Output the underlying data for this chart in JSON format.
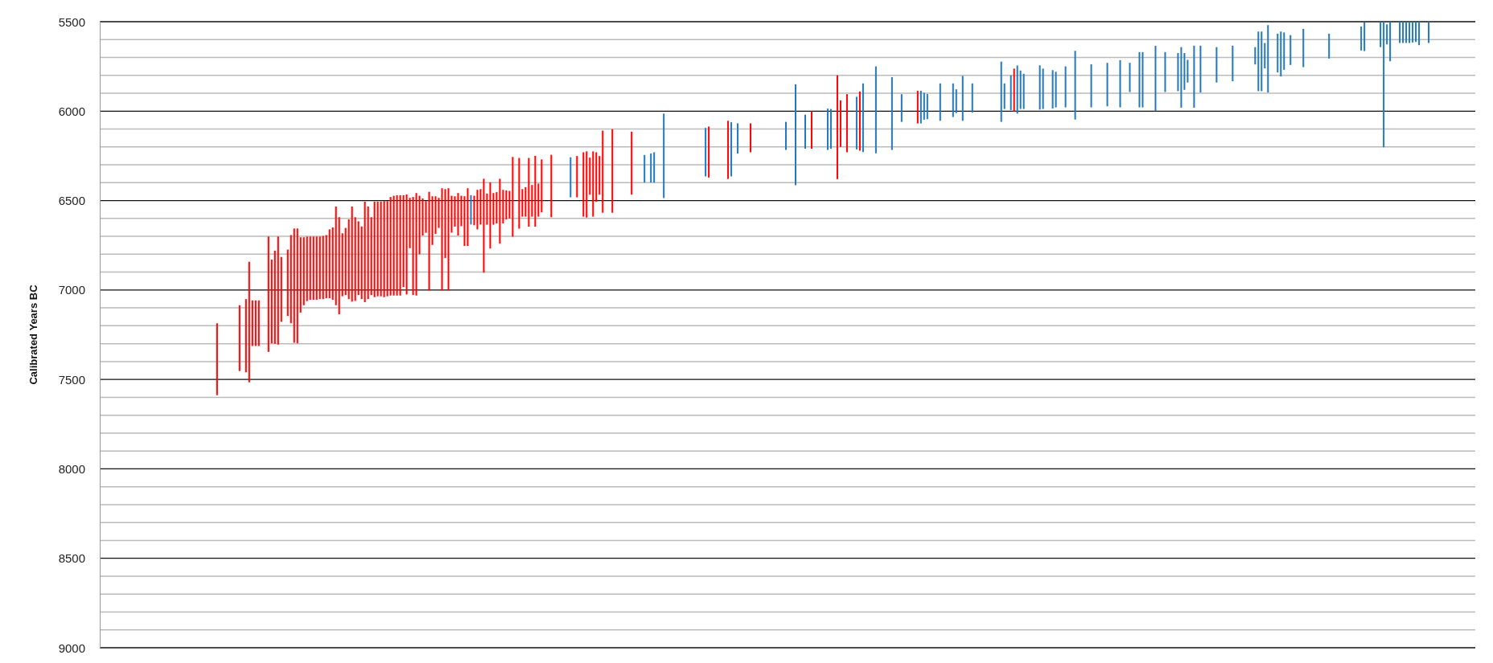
{
  "chart_data": {
    "type": "bar",
    "ylabel": "Calibrated Years BC",
    "tick_labels": "y",
    "grid": true,
    "ylim": [
      9000,
      5500
    ],
    "yticks": [
      5500,
      {
        "value": 5600,
        "label": null
      },
      {
        "value": 5700,
        "label": null
      },
      {
        "value": 5800,
        "label": null
      },
      {
        "value": 5900,
        "label": null
      },
      6000,
      {
        "value": 6100,
        "label": null
      },
      {
        "value": 6200,
        "label": null
      },
      {
        "value": 6300,
        "label": null
      },
      {
        "value": 6400,
        "label": null
      },
      6500,
      {
        "value": 6600,
        "label": null
      },
      {
        "value": 6700,
        "label": null
      },
      {
        "value": 6800,
        "label": null
      },
      {
        "value": 6900,
        "label": null
      },
      7000,
      {
        "value": 7100,
        "label": null
      },
      {
        "value": 7200,
        "label": null
      },
      {
        "value": 7300,
        "label": null
      },
      {
        "value": 7400,
        "label": null
      },
      7500,
      {
        "value": 7600,
        "label": null
      },
      {
        "value": 7700,
        "label": null
      },
      {
        "value": 7800,
        "label": null
      },
      {
        "value": 7900,
        "label": null
      },
      8000,
      {
        "value": 8100,
        "label": null
      },
      {
        "value": 8200,
        "label": null
      },
      {
        "value": 8300,
        "label": null
      },
      {
        "value": 8400,
        "label": null
      },
      8500,
      {
        "value": 8600,
        "label": null
      },
      {
        "value": 8700,
        "label": null
      },
      {
        "value": 8800,
        "label": null
      },
      {
        "value": 8900,
        "label": null
      },
      9000
    ],
    "categories": [
      null,
      null,
      null,
      null,
      null,
      null,
      null,
      null,
      null,
      null,
      null,
      null,
      null,
      null,
      null,
      null,
      null,
      null,
      null,
      null,
      null,
      null,
      null,
      null,
      null,
      null,
      null,
      null,
      null,
      null,
      null,
      null,
      null,
      null,
      null,
      null,
      null,
      null,
      null,
      null,
      null,
      null,
      null,
      null,
      null,
      null,
      null,
      null,
      null,
      null,
      null,
      null,
      null,
      null,
      null,
      null,
      null,
      null,
      null,
      null,
      null,
      null,
      null,
      null,
      null,
      null,
      null,
      null,
      null,
      null,
      null,
      null,
      null,
      null,
      null,
      null,
      null,
      null,
      null,
      null,
      null,
      null,
      null,
      null,
      null,
      null,
      null,
      null,
      null,
      null,
      null,
      null,
      null,
      null,
      null,
      null,
      null,
      null,
      null,
      null,
      null,
      null,
      null,
      null,
      null,
      null,
      null,
      null,
      null,
      null,
      null,
      null,
      null,
      null,
      null,
      null,
      null,
      null,
      null,
      null,
      null,
      null,
      null,
      null,
      null,
      null,
      null,
      null,
      null,
      null,
      null,
      null,
      null,
      null,
      null,
      null,
      null,
      null,
      null,
      null,
      null,
      null,
      null,
      null,
      null,
      null,
      null,
      null,
      null,
      null,
      null,
      null,
      null,
      null,
      null,
      null,
      null,
      null,
      null,
      null,
      null,
      null,
      null,
      null,
      null,
      null,
      null,
      null,
      null,
      null,
      null,
      null,
      null,
      null,
      null,
      null,
      null,
      null,
      null,
      null,
      null,
      null,
      null,
      null,
      null,
      null,
      null,
      null,
      null,
      null,
      null,
      null,
      null,
      null,
      null,
      null,
      null,
      null,
      null,
      null,
      null,
      null,
      null,
      null,
      null,
      null,
      null,
      null,
      null,
      null,
      null,
      null,
      null,
      null,
      null,
      null,
      null,
      null,
      null,
      null,
      null,
      null,
      null,
      null,
      null,
      null,
      null,
      null,
      null,
      null,
      null,
      null,
      null,
      null,
      null,
      null,
      null,
      null,
      null,
      null,
      null,
      null,
      null,
      null,
      null,
      null,
      null,
      null,
      null,
      null,
      null,
      null,
      null,
      null,
      null,
      null,
      null,
      null,
      null,
      null,
      null,
      null,
      null,
      null,
      null,
      null,
      null,
      null,
      null,
      null,
      null,
      null,
      null,
      null,
      null,
      null,
      null,
      null,
      null,
      null,
      null,
      null,
      null,
      null,
      null,
      null,
      null,
      null,
      null,
      null,
      null,
      null,
      null,
      null,
      null,
      null,
      null,
      null,
      null,
      null,
      null,
      null,
      null,
      null,
      null,
      null,
      null,
      null,
      null,
      null,
      null,
      null,
      null,
      null,
      null,
      null,
      null,
      null,
      null,
      null,
      null,
      null,
      null,
      null,
      null,
      null,
      null,
      null,
      null,
      null,
      null,
      null,
      null,
      null,
      null,
      null,
      null,
      null,
      null,
      null,
      null,
      null,
      null,
      null,
      null,
      null,
      null,
      null,
      null,
      null,
      null,
      null,
      null,
      null,
      null,
      null,
      null,
      null,
      null,
      null,
      null,
      null,
      null,
      null,
      null,
      null,
      null,
      null,
      null,
      null,
      null,
      null,
      null,
      null,
      null,
      null,
      null,
      null,
      null,
      null,
      null,
      null,
      null,
      null,
      null,
      null,
      null,
      null,
      null,
      null,
      null,
      null,
      null,
      null,
      null,
      null,
      null,
      null,
      null,
      null,
      null,
      null,
      null,
      null,
      null,
      null,
      null,
      null,
      null,
      null,
      null,
      null,
      null,
      null,
      null,
      null,
      null,
      null,
      null,
      null,
      null,
      null,
      null,
      null,
      null,
      null,
      null,
      null
    ],
    "series": [
      {
        "base": [
          null,
          null,
          null,
          null,
          null,
          null,
          null,
          null,
          null,
          null,
          null,
          null,
          null,
          null,
          null,
          null,
          null,
          null,
          null,
          null,
          null,
          null,
          null,
          null,
          null,
          null,
          null,
          null,
          null,
          null,
          null,
          null,
          null,
          null,
          null,
          null,
          7186,
          null,
          null,
          null,
          null,
          null,
          null,
          7085,
          null,
          7051,
          6842,
          7058,
          7058,
          7058,
          null,
          null,
          6701,
          6830,
          6780,
          6701,
          6815,
          null,
          6774,
          6693,
          6656,
          6656,
          6705,
          6705,
          6701,
          6701,
          6701,
          6701,
          6701,
          6698,
          6693,
          6661,
          6650,
          6533,
          6593,
          6683,
          6653,
          6605,
          6533,
          6593,
          6616,
          6645,
          6506,
          6533,
          6593,
          6506,
          6506,
          6506,
          6503,
          6503,
          6480,
          6473,
          6470,
          6470,
          6470,
          6466,
          6485,
          6480,
          6458,
          6473,
          6488,
          6503,
          6451,
          6476,
          6476,
          6485,
          6431,
          6436,
          6431,
          6473,
          6476,
          6458,
          6473,
          6476,
          6431,
          6470,
          6473,
          6440,
          6436,
          6378,
          6461,
          6398,
          6458,
          6453,
          6378,
          6440,
          6443,
          6446,
          6256,
          null,
          6262,
          6436,
          6425,
          6262,
          6413,
          6250,
          6405,
          6270,
          null,
          null,
          6244,
          null,
          null,
          null,
          null,
          null,
          6258,
          null,
          6251,
          null,
          6230,
          6225,
          6260,
          6225,
          6230,
          6251,
          6109,
          null,
          null,
          6101,
          null,
          null,
          null,
          null,
          null,
          6115,
          null,
          null,
          null,
          6245,
          null,
          6237,
          6230,
          null,
          null,
          6014,
          null,
          null,
          null,
          null,
          null,
          null,
          null,
          null,
          null,
          null,
          null,
          null,
          6094,
          6086,
          null,
          null,
          null,
          null,
          null,
          6054,
          6062,
          null,
          6068,
          null,
          null,
          null,
          6068,
          null,
          null,
          null,
          null,
          null,
          null,
          null,
          null,
          null,
          null,
          6060,
          null,
          null,
          5850,
          null,
          null,
          6020,
          null,
          6000,
          null,
          null,
          null,
          null,
          5986,
          5988,
          null,
          5800,
          5940,
          null,
          5905,
          null,
          null,
          5920,
          5890,
          5845,
          null,
          null,
          null,
          5750,
          null,
          null,
          null,
          null,
          5810,
          null,
          null,
          5905,
          null,
          null,
          null,
          null,
          5886,
          5886,
          5898,
          5904,
          null,
          null,
          null,
          5845,
          null,
          null,
          null,
          5845,
          5878,
          null,
          5803,
          null,
          null,
          5845,
          null,
          null,
          null,
          null,
          null,
          null,
          null,
          null,
          5723,
          5845,
          null,
          5800,
          5762,
          5745,
          5773,
          5791,
          null,
          null,
          null,
          null,
          5744,
          5762,
          null,
          null,
          5771,
          5780,
          null,
          null,
          5750,
          null,
          null,
          5663,
          null,
          null,
          null,
          null,
          5738,
          null,
          null,
          null,
          null,
          5730,
          null,
          null,
          null,
          5715,
          null,
          null,
          5730,
          null,
          null,
          5670,
          5670,
          null,
          null,
          null,
          5635,
          null,
          null,
          5670,
          null,
          null,
          null,
          5675,
          5642,
          5675,
          5713,
          null,
          5634,
          null,
          5634,
          null,
          null,
          null,
          null,
          5642,
          null,
          null,
          null,
          null,
          5634,
          null,
          null,
          null,
          null,
          null,
          null,
          5642,
          5555,
          5555,
          5619,
          5519,
          null,
          null,
          5567,
          5555,
          5560,
          null,
          5575,
          null,
          null,
          null,
          5540,
          null,
          null,
          null,
          null,
          null,
          null,
          null,
          5567,
          null,
          null,
          null,
          null,
          null,
          null,
          null,
          null,
          null,
          5527,
          5503,
          null,
          null,
          null,
          null,
          5500,
          5500,
          5515,
          5500,
          null,
          null,
          5500,
          5500,
          5500,
          5500,
          5500,
          5500,
          5500,
          null,
          null,
          5500,
          null,
          null,
          null,
          null,
          null,
          null,
          null,
          null,
          null,
          null,
          null,
          null,
          null,
          null
        ],
        "values": [
          null,
          null,
          null,
          null,
          null,
          null,
          null,
          null,
          null,
          null,
          null,
          null,
          null,
          null,
          null,
          null,
          null,
          null,
          null,
          null,
          null,
          null,
          null,
          null,
          null,
          null,
          null,
          null,
          null,
          null,
          null,
          null,
          null,
          null,
          null,
          null,
          402,
          null,
          null,
          null,
          null,
          null,
          null,
          368,
          null,
          409,
          674,
          255,
          255,
          255,
          null,
          null,
          645,
          468,
          521,
          604,
          363,
          null,
          371,
          493,
          639,
          642,
          421,
          380,
          361,
          354,
          354,
          354,
          350,
          353,
          353,
          385,
          405,
          552,
          543,
          352,
          375,
          446,
          532,
          468,
          412,
          406,
          562,
          518,
          435,
          534,
          529,
          529,
          537,
          532,
          551,
          558,
          561,
          561,
          513,
          559,
          281,
          548,
          573,
          327,
          207,
          177,
          552,
          272,
          210,
          168,
          572,
          385,
          572,
          206,
          170,
          237,
          170,
          278,
          323,
          164,
          165,
          221,
          198,
          525,
          174,
          370,
          177,
          175,
          362,
          188,
          162,
          154,
          446,
          null,
          395,
          154,
          165,
          384,
          177,
          396,
          185,
          296,
          null,
          null,
          349,
          null,
          null,
          null,
          null,
          null,
          224,
          null,
          231,
          null,
          360,
          370,
          207,
          365,
          277,
          216,
          459,
          null,
          null,
          467,
          null,
          null,
          null,
          null,
          null,
          352,
          null,
          null,
          null,
          154,
          null,
          162,
          169,
          null,
          null,
          472,
          null,
          null,
          null,
          null,
          null,
          null,
          null,
          null,
          null,
          null,
          null,
          null,
          271,
          285,
          null,
          null,
          null,
          null,
          null,
          325,
          303,
          null,
          169,
          null,
          null,
          null,
          162,
          null,
          null,
          null,
          null,
          null,
          null,
          null,
          null,
          null,
          null,
          157,
          null,
          null,
          564,
          null,
          null,
          190,
          null,
          210,
          null,
          null,
          null,
          null,
          231,
          222,
          null,
          580,
          260,
          null,
          325,
          null,
          null,
          294,
          331,
          384,
          null,
          null,
          null,
          486,
          null,
          null,
          null,
          null,
          407,
          null,
          null,
          155,
          null,
          null,
          null,
          null,
          183,
          183,
          150,
          141,
          null,
          null,
          null,
          209,
          null,
          null,
          null,
          188,
          133,
          null,
          251,
          null,
          null,
          163,
          null,
          null,
          null,
          null,
          null,
          null,
          null,
          null,
          337,
          143,
          null,
          194,
          241,
          269,
          215,
          197,
          null,
          null,
          null,
          null,
          247,
          226,
          null,
          null,
          214,
          199,
          null,
          null,
          229,
          null,
          null,
          384,
          null,
          null,
          null,
          null,
          241,
          null,
          null,
          null,
          null,
          243,
          null,
          null,
          null,
          264,
          null,
          null,
          163,
          null,
          null,
          309,
          309,
          null,
          null,
          null,
          365,
          null,
          null,
          223,
          null,
          null,
          null,
          213,
          339,
          206,
          127,
          null,
          347,
          null,
          262,
          null,
          null,
          null,
          null,
          198,
          null,
          null,
          null,
          null,
          199,
          null,
          null,
          null,
          null,
          null,
          null,
          97,
          333,
          333,
          142,
          377,
          null,
          null,
          217,
          251,
          209,
          null,
          167,
          null,
          null,
          null,
          214,
          null,
          null,
          null,
          null,
          null,
          null,
          null,
          139,
          null,
          null,
          null,
          null,
          null,
          null,
          null,
          null,
          null,
          134,
          161,
          null,
          null,
          null,
          null,
          142,
          702,
          112,
          221,
          null,
          null,
          119,
          119,
          119,
          119,
          116,
          113,
          131,
          null,
          null,
          119,
          null,
          null,
          null,
          null,
          null,
          null,
          null,
          null,
          null,
          null,
          null,
          null,
          null,
          null
        ],
        "colors": [
          null,
          null,
          null,
          null,
          null,
          null,
          null,
          null,
          null,
          null,
          null,
          null,
          null,
          null,
          null,
          null,
          null,
          null,
          null,
          null,
          null,
          null,
          null,
          null,
          null,
          null,
          null,
          null,
          null,
          null,
          null,
          null,
          null,
          null,
          null,
          null,
          "#ff0000",
          null,
          null,
          null,
          null,
          null,
          null,
          "#ff0000",
          null,
          "#ff0000",
          "#ff0000",
          "#ff0000",
          "#ff0000",
          "#ff0000",
          null,
          null,
          "#ff0000",
          "#ff0000",
          "#ff0000",
          "#ff0000",
          "#ff0000",
          null,
          "#ff0000",
          "#ff0000",
          "#ff0000",
          "#ff0000",
          "#ff0000",
          "#ff0000",
          "#ff0000",
          "#ff0000",
          "#ff0000",
          "#ff0000",
          "#ff0000",
          "#ff0000",
          "#ff0000",
          "#ff0000",
          "#ff0000",
          "#ff0000",
          "#ff0000",
          "#ff0000",
          "#ff0000",
          "#ff0000",
          "#ff0000",
          "#ff0000",
          "#ff0000",
          "#ff0000",
          "#ff0000",
          "#ff0000",
          "#ff0000",
          "#ff0000",
          "#ff0000",
          "#ff0000",
          "#ff0000",
          "#ff0000",
          "#ff0000",
          "#ff0000",
          "#ff0000",
          "#ff0000",
          "#ff0000",
          "#ff0000",
          "#ff0000",
          "#ff0000",
          "#ff0000",
          "#ff0000",
          "#ff0000",
          "#ff0000",
          "#ff0000",
          "#ff0000",
          "#ff0000",
          "#ff0000",
          "#ff0000",
          "#ff0000",
          "#ff0000",
          "#ff0000",
          "#ff0000",
          "#ff0000",
          "#ff0000",
          "#ff0000",
          "#ff0000",
          "#1f78c1",
          "#ff0000",
          "#ff0000",
          "#ff0000",
          "#ff0000",
          "#ff0000",
          "#ff0000",
          "#ff0000",
          "#ff0000",
          "#ff0000",
          "#ff0000",
          "#ff0000",
          "#ff0000",
          "#ff0000",
          null,
          "#ff0000",
          "#ff0000",
          "#ff0000",
          "#ff0000",
          "#ff0000",
          "#ff0000",
          "#ff0000",
          "#ff0000",
          null,
          null,
          "#ff0000",
          null,
          null,
          null,
          null,
          null,
          "#1f78c1",
          null,
          "#ff0000",
          null,
          "#ff0000",
          "#ff0000",
          "#ff0000",
          "#ff0000",
          "#ff0000",
          "#ff0000",
          "#ff0000",
          null,
          null,
          "#ff0000",
          null,
          null,
          null,
          null,
          null,
          "#ff0000",
          null,
          null,
          null,
          "#1f78c1",
          null,
          "#1f78c1",
          "#1f78c1",
          null,
          null,
          "#1f78c1",
          null,
          null,
          null,
          null,
          null,
          null,
          null,
          null,
          null,
          null,
          null,
          null,
          "#1f78c1",
          "#ff0000",
          null,
          null,
          null,
          null,
          null,
          "#ff0000",
          "#1f78c1",
          null,
          "#1f78c1",
          null,
          null,
          null,
          "#ff0000",
          null,
          null,
          null,
          null,
          null,
          null,
          null,
          null,
          null,
          null,
          "#1f78c1",
          null,
          null,
          "#1f78c1",
          null,
          null,
          "#1f78c1",
          null,
          "#ff0000",
          null,
          null,
          null,
          null,
          "#1f78c1",
          "#1f78c1",
          null,
          "#ff0000",
          "#ff0000",
          null,
          "#ff0000",
          null,
          null,
          "#1f78c1",
          "#ff0000",
          "#1f78c1",
          null,
          null,
          null,
          "#1f78c1",
          null,
          null,
          null,
          null,
          "#1f78c1",
          null,
          null,
          "#1f78c1",
          null,
          null,
          null,
          null,
          "#ff0000",
          "#1f78c1",
          "#1f78c1",
          "#1f78c1",
          null,
          null,
          null,
          "#1f78c1",
          null,
          null,
          null,
          "#1f78c1",
          "#1f78c1",
          null,
          "#1f78c1",
          null,
          null,
          "#1f78c1",
          null,
          null,
          null,
          null,
          null,
          null,
          null,
          null,
          "#1f78c1",
          "#1f78c1",
          null,
          "#1f78c1",
          "#ff0000",
          "#1f78c1",
          "#1f78c1",
          "#1f78c1",
          null,
          null,
          null,
          null,
          "#1f78c1",
          "#1f78c1",
          null,
          null,
          "#1f78c1",
          "#1f78c1",
          null,
          null,
          "#1f78c1",
          null,
          null,
          "#1f78c1",
          null,
          null,
          null,
          null,
          "#1f78c1",
          null,
          null,
          null,
          null,
          "#1f78c1",
          null,
          null,
          null,
          "#1f78c1",
          null,
          null,
          "#1f78c1",
          null,
          null,
          "#1f78c1",
          "#1f78c1",
          null,
          null,
          null,
          "#1f78c1",
          null,
          null,
          "#1f78c1",
          null,
          null,
          null,
          "#1f78c1",
          "#1f78c1",
          "#1f78c1",
          "#1f78c1",
          null,
          "#1f78c1",
          null,
          "#1f78c1",
          null,
          null,
          null,
          null,
          "#1f78c1",
          null,
          null,
          null,
          null,
          "#1f78c1",
          null,
          null,
          null,
          null,
          null,
          null,
          "#1f78c1",
          "#1f78c1",
          "#1f78c1",
          "#1f78c1",
          "#1f78c1",
          null,
          null,
          "#1f78c1",
          "#1f78c1",
          "#1f78c1",
          null,
          "#1f78c1",
          null,
          null,
          null,
          "#1f78c1",
          null,
          null,
          null,
          null,
          null,
          null,
          null,
          "#1f78c1",
          null,
          null,
          null,
          null,
          null,
          null,
          null,
          null,
          null,
          "#1f78c1",
          "#1f78c1",
          null,
          null,
          null,
          null,
          "#1f78c1",
          "#1f78c1",
          "#1f78c1",
          "#1f78c1",
          null,
          null,
          "#1f78c1",
          "#1f78c1",
          "#1f78c1",
          "#1f78c1",
          "#1f78c1",
          "#1f78c1",
          "#1f78c1",
          null,
          null,
          "#1f78c1",
          null,
          null,
          null,
          null,
          null,
          null,
          null,
          null,
          null,
          null,
          null,
          null,
          null,
          null
        ]
      }
    ]
  }
}
